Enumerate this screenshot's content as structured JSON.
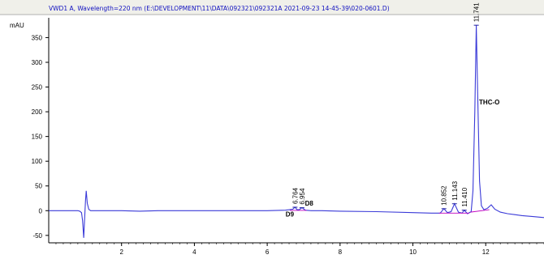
{
  "chart_data": {
    "type": "line",
    "title": "VWD1 A, Wavelength=220 nm (E:\\DEVELOPMENT\\11\\DATA\\092321\\092321A 2021-09-23 14-45-39\\020-0601.D)",
    "ylabel": "mAU",
    "xlabel": "",
    "xlim": [
      0,
      13.6
    ],
    "ylim": [
      -65,
      390
    ],
    "x_ticks": [
      2,
      4,
      6,
      8,
      10,
      12
    ],
    "y_ticks": [
      -50,
      0,
      50,
      100,
      150,
      200,
      250,
      300,
      350
    ],
    "grid": false,
    "series": [
      {
        "x": [
          0,
          0.5,
          0.8,
          0.85,
          0.9,
          0.93,
          0.96,
          0.99,
          1.01,
          1.03,
          1.06,
          1.1,
          1.15,
          1.3,
          1.6,
          2.0,
          2.5,
          3.0,
          3.5,
          4.0,
          5.0,
          6.0,
          6.5,
          6.7,
          6.764,
          6.82,
          6.88,
          6.954,
          7.05,
          7.2,
          7.5,
          8.0,
          9.0,
          10.0,
          10.5,
          10.75,
          10.852,
          10.95,
          11.05,
          11.143,
          11.25,
          11.35,
          11.41,
          11.5,
          11.6,
          11.65,
          11.7,
          11.741,
          11.78,
          11.83,
          11.88,
          11.95,
          12.05,
          12.15,
          12.25,
          12.4,
          12.6,
          12.8,
          13.0,
          13.3,
          13.6
        ],
        "y": [
          0,
          0,
          0,
          -1,
          -4,
          -20,
          -55,
          -10,
          20,
          40,
          15,
          3,
          0,
          0,
          0,
          0,
          -1,
          0,
          0,
          0,
          0,
          0,
          1,
          3,
          7,
          2,
          2,
          6,
          1,
          0,
          0,
          -1,
          -2,
          -4,
          -5,
          -5,
          4,
          -4,
          -2,
          14,
          -3,
          -5,
          1,
          -6,
          -2,
          40,
          200,
          375,
          230,
          60,
          10,
          2,
          5,
          12,
          3,
          -3,
          -6,
          -8,
          -10,
          -12,
          -14
        ]
      }
    ],
    "peak_labels": [
      "6.764",
      "6.954",
      "10.852",
      "11.143",
      "11.410",
      "11.741"
    ],
    "annotations": [
      "D9",
      "D8",
      "THC-O"
    ],
    "colors": {
      "trace": "#3a3ad8",
      "baseline": "#c000c0",
      "marker": "#2020a0",
      "title_bar": "#f0f0ea",
      "title_text": "#1010c0",
      "axis": "#000000"
    }
  }
}
